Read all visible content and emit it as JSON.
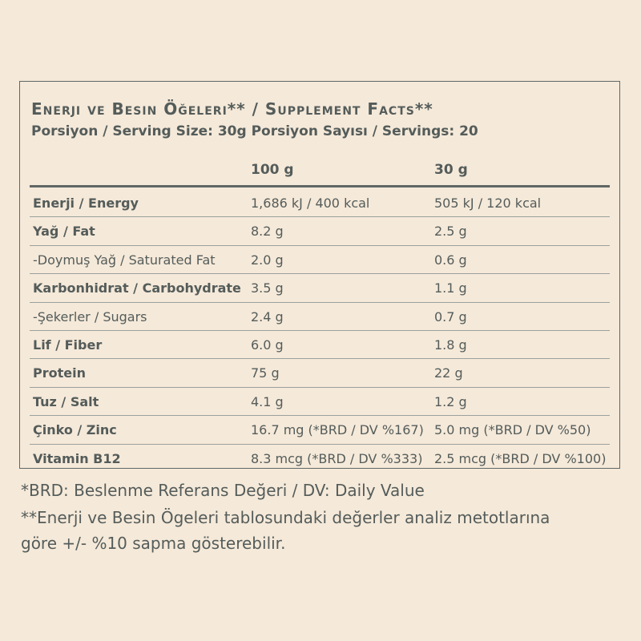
{
  "title": "Enerji ve Besin Öğeleri** / Supplement Facts**",
  "subtitle": "Porsiyon / Serving Size: 30g Porsiyon Sayısı / Servings: 20",
  "columns": [
    "100 g",
    "30 g"
  ],
  "rows": [
    {
      "name": "Enerji / Energy",
      "bold": true,
      "v100": "1,686 kJ / 400 kcal",
      "v30": "505 kJ / 120 kcal"
    },
    {
      "name": "Yağ / Fat",
      "bold": true,
      "v100": "8.2 g",
      "v30": "2.5 g"
    },
    {
      "name": "-Doymuş Yağ / Saturated Fat",
      "bold": false,
      "v100": "2.0 g",
      "v30": "0.6 g"
    },
    {
      "name": "Karbonhidrat / Carbohydrate",
      "bold": true,
      "v100": "3.5 g",
      "v30": "1.1 g"
    },
    {
      "name": "-Şekerler / Sugars",
      "bold": false,
      "v100": "2.4 g",
      "v30": "0.7 g"
    },
    {
      "name": "Lif / Fiber",
      "bold": true,
      "v100": "6.0 g",
      "v30": "1.8 g"
    },
    {
      "name": "Protein",
      "bold": true,
      "v100": "75  g",
      "v30": "22  g"
    },
    {
      "name": "Tuz / Salt",
      "bold": true,
      "v100": "4.1 g",
      "v30": "1.2 g"
    },
    {
      "name": "Çinko / Zinc",
      "bold": true,
      "v100": "16.7 mg (*BRD / DV %167)",
      "v30": "5.0 mg (*BRD / DV %50)"
    },
    {
      "name": "Vitamin B12",
      "bold": true,
      "v100": "8.3 mcg (*BRD / DV %333)",
      "v30": "2.5 mcg (*BRD / DV %100)"
    }
  ],
  "footnotes": [
    "*BRD: Beslenme Referans Değeri / DV: Daily Value",
    "**Enerji ve Besin Ögeleri tablosundaki değerler analiz metotlarına",
    "göre +/- %10 sapma gösterebilir."
  ]
}
